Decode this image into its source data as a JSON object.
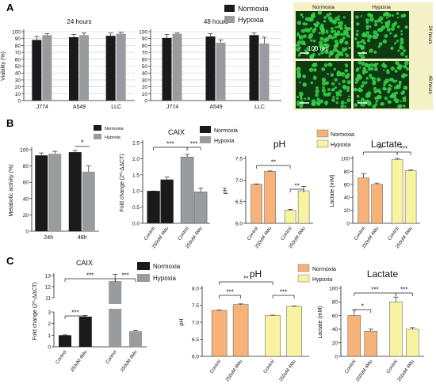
{
  "panels": {
    "a": "A",
    "b": "B",
    "c": "C"
  },
  "micrograph": {
    "labels": [
      "Normoxia",
      "Hypoxia"
    ],
    "rows": [
      "24 hours",
      "48 hours"
    ],
    "scale": "100 um"
  },
  "colors": {
    "normoxia": "#1a1a1a",
    "hypoxia": "#9a9b9e",
    "control_ph": "#f7b27a",
    "treated_ph": "#f7f3a0"
  },
  "chart_data": [
    {
      "id": "a24",
      "type": "bar",
      "title": "24 hours",
      "ylabel": "Viability (%)",
      "categories": [
        "J774",
        "A549",
        "LLC"
      ],
      "ylim": [
        0,
        100
      ],
      "yticks": [
        0,
        10,
        20,
        30,
        40,
        50,
        60,
        70,
        80,
        90,
        100
      ],
      "series": [
        {
          "name": "Normoxia",
          "color": "#1a1a1a",
          "values": [
            88,
            92,
            94
          ],
          "errors": [
            5,
            4,
            4
          ]
        },
        {
          "name": "Hypoxia",
          "color": "#9a9b9e",
          "values": [
            95,
            95,
            97
          ],
          "errors": [
            2,
            3,
            2
          ]
        }
      ],
      "legend": "top-right"
    },
    {
      "id": "a48",
      "type": "bar",
      "title": "48 hours",
      "ylabel": "",
      "categories": [
        "J774",
        "A549",
        "LLC"
      ],
      "ylim": [
        0,
        100
      ],
      "yticks": [
        0,
        10,
        20,
        30,
        40,
        50,
        60,
        70,
        80,
        90,
        100
      ],
      "series": [
        {
          "name": "Normoxia",
          "color": "#1a1a1a",
          "values": [
            91,
            93,
            95
          ],
          "errors": [
            5,
            4,
            3
          ]
        },
        {
          "name": "Hypoxia",
          "color": "#9a9b9e",
          "values": [
            97,
            84,
            83
          ],
          "errors": [
            1,
            4,
            9
          ]
        }
      ]
    },
    {
      "id": "b1",
      "type": "bar",
      "ylabel": "Metabolic activity (%)",
      "categories": [
        "24h",
        "48h"
      ],
      "ylim": [
        0,
        100
      ],
      "yticks": [
        0,
        20,
        40,
        60,
        80,
        100
      ],
      "series": [
        {
          "name": "Normoxia",
          "color": "#1a1a1a",
          "values": [
            93,
            97
          ],
          "errors": [
            3,
            2
          ]
        },
        {
          "name": "Hypoxia",
          "color": "#9a9b9e",
          "values": [
            95,
            73
          ],
          "errors": [
            3,
            7
          ]
        }
      ],
      "annotations": [
        {
          "text": "*",
          "group": 1
        }
      ],
      "legend": "top-right"
    },
    {
      "id": "b2",
      "type": "bar",
      "title": "CAIX",
      "ylabel": "Fold change (2^-ΔΔCT)",
      "categories": [
        "Control",
        "250uM 4Mu",
        "Control",
        "250uM 4Mu"
      ],
      "colors": [
        "#1a1a1a",
        "#1a1a1a",
        "#9a9b9e",
        "#9a9b9e"
      ],
      "values": [
        1.0,
        1.35,
        2.05,
        0.97
      ],
      "errors": [
        0,
        0.08,
        0.08,
        0.12
      ],
      "ylim": [
        0,
        2.5
      ],
      "yticks": [
        0.0,
        0.5,
        1.0,
        1.5,
        2.0,
        2.5
      ],
      "annotations": [
        "***",
        "***"
      ],
      "legend_entries": [
        "Normoxia",
        "Hypoxia"
      ]
    },
    {
      "id": "b3",
      "type": "bar",
      "title": "pH",
      "ylabel": "pH",
      "categories": [
        "Control",
        "250uM 4Mu",
        "Control",
        "250uM 4Mu"
      ],
      "colors": [
        "#f7b27a",
        "#f7b27a",
        "#f7f3a0",
        "#f7f3a0"
      ],
      "values": [
        6.9,
        7.2,
        6.3,
        6.75
      ],
      "errors": [
        0.01,
        0.01,
        0.02,
        0.1
      ],
      "ylim": [
        6.0,
        7.5
      ],
      "yticks": [
        6.0,
        6.5,
        7.0,
        7.5
      ],
      "annotations": [
        "**",
        "**"
      ],
      "legend_entries": [
        "Normoxia",
        "Hypoxia"
      ]
    },
    {
      "id": "b4",
      "type": "bar",
      "title": "Lactate",
      "ylabel": "Lactate (mM)",
      "categories": [
        "Control",
        "250uM 4Mu",
        "Control",
        "250uM 4Mu"
      ],
      "colors": [
        "#f7b27a",
        "#f7b27a",
        "#f7f3a0",
        "#f7f3a0"
      ],
      "values": [
        70,
        60,
        98,
        81
      ],
      "errors": [
        6,
        2,
        2,
        1
      ],
      "ylim": [
        0,
        100
      ],
      "yticks": [
        0,
        20,
        40,
        60,
        80,
        100
      ],
      "annotations": [
        "**",
        "***"
      ]
    },
    {
      "id": "c1",
      "type": "bar",
      "title": "CAIX",
      "ylabel": "Fold change (2^-ΔΔCT)",
      "categories": [
        "Control",
        "250uM 4Mu",
        "Control",
        "250uM 4Mu"
      ],
      "colors": [
        "#1a1a1a",
        "#1a1a1a",
        "#9a9b9e",
        "#9a9b9e"
      ],
      "values": [
        1.0,
        2.6,
        12.5,
        1.35
      ],
      "errors": [
        0.03,
        0.1,
        0.6,
        0.05
      ],
      "yticks": [
        "0",
        "1",
        "2",
        "3",
        "11",
        "12",
        "13"
      ],
      "axis_break": [
        3,
        11
      ],
      "annotations": [
        "***",
        "***",
        "***"
      ],
      "legend_entries": [
        "Normoxia",
        "Hypoxia"
      ]
    },
    {
      "id": "c2",
      "type": "bar",
      "title": "pH",
      "ylabel": "pH",
      "categories": [
        "Control",
        "250uM 4Mu",
        "Control",
        "250uM 4Mu"
      ],
      "colors": [
        "#f7b27a",
        "#f7b27a",
        "#f7f3a0",
        "#f7f3a0"
      ],
      "values": [
        7.35,
        7.52,
        7.2,
        7.47
      ],
      "errors": [
        0.01,
        0.02,
        0.01,
        0.01
      ],
      "ylim": [
        6.0,
        8.0
      ],
      "yticks": [
        6.0,
        6.5,
        7.0,
        7.5,
        8.0
      ],
      "annotations": [
        "**",
        "***",
        "***"
      ],
      "legend_entries": [
        "Normoxia",
        "Hypoxia"
      ]
    },
    {
      "id": "c3",
      "type": "bar",
      "title": "Lactate",
      "ylabel": "Lactate (mM)",
      "categories": [
        "Control",
        "250uM 4Mu",
        "Control",
        "250uM 4Mu"
      ],
      "colors": [
        "#f7b27a",
        "#f7b27a",
        "#f7f3a0",
        "#f7f3a0"
      ],
      "values": [
        60,
        37,
        80,
        40
      ],
      "errors": [
        8,
        3,
        7,
        2
      ],
      "ylim": [
        0,
        100
      ],
      "yticks": [
        0,
        20,
        40,
        60,
        80,
        100
      ],
      "annotations": [
        "*",
        "***",
        "***"
      ]
    }
  ]
}
